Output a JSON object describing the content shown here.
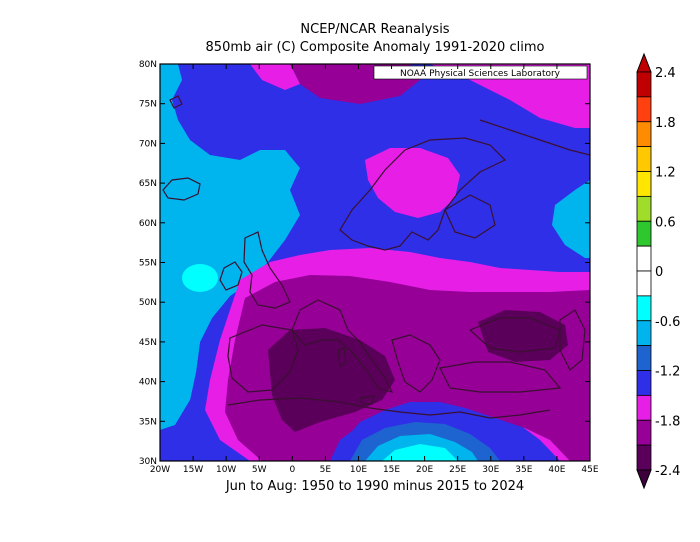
{
  "header": {
    "title_line1": "NCEP/NCAR Reanalysis",
    "title_line2": "850mb air (C) Composite Anomaly 1991-2020 climo"
  },
  "footer": {
    "subtitle": "Jun to Aug: 1950 to 1990 minus 2015 to 2024"
  },
  "map": {
    "credit": "NOAA Physical Sciences Laboratory",
    "lat_labels": [
      "80N",
      "75N",
      "70N",
      "65N",
      "60N",
      "55N",
      "50N",
      "45N",
      "40N",
      "35N",
      "30N"
    ],
    "lon_labels": [
      "20W",
      "15W",
      "10W",
      "5W",
      "0",
      "5E",
      "10E",
      "15E",
      "20E",
      "25E",
      "30E",
      "35E",
      "40E",
      "45E"
    ],
    "lon_range": [
      -20,
      45
    ],
    "lat_range": [
      30,
      80
    ]
  },
  "colorbar": {
    "labels": [
      "2.4",
      "1.8",
      "1.2",
      "0.6",
      "0",
      "-0.6",
      "-1.2",
      "-1.8",
      "-2.4"
    ],
    "colors": [
      "#c00000",
      "#ff4010",
      "#ff8c00",
      "#ffc800",
      "#ffe600",
      "#a0dc2a",
      "#2ec82e",
      "#ffffff",
      "#ffffff",
      "#00ffff",
      "#00b4ee",
      "#1e64d0",
      "#2f2fe8",
      "#e61ee6",
      "#960096",
      "#5a005a"
    ]
  }
}
